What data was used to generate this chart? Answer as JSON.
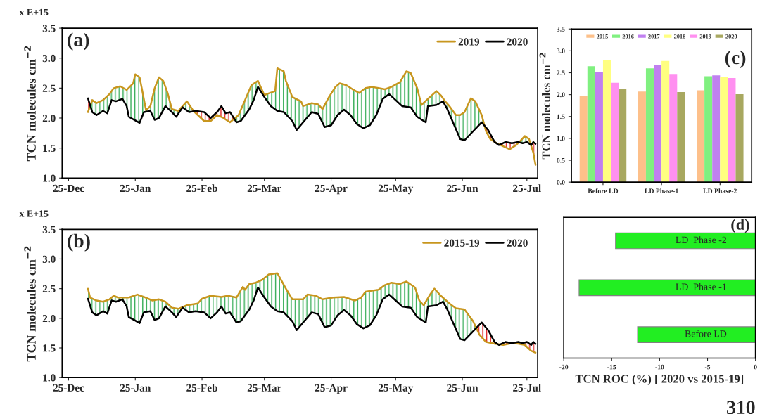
{
  "chart_data": [
    {
      "type": "line",
      "ylabel": "TCN molecules cm$^{−2}$",
      "annotations": [
        "(a)",
        "x E+15"
      ],
      "legend": "top right",
      "grid": false,
      "xlim": [
        "2019-12-22",
        "2020-07-30"
      ],
      "xticks": [
        {
          "value": "2019-12-25",
          "label": "25-Dec"
        },
        {
          "value": "2020-01-25",
          "label": "25-Jan"
        },
        {
          "value": "2020-02-25",
          "label": "25-Feb"
        },
        {
          "value": "2020-03-25",
          "label": "25-Mar"
        },
        {
          "value": "2020-04-25",
          "label": "25-Apr"
        },
        {
          "value": "2020-05-25",
          "label": "25-May"
        },
        {
          "value": "2020-06-25",
          "label": "25-Jun"
        },
        {
          "value": "2020-07-25",
          "label": "25-Jul"
        }
      ],
      "ylim": [
        1.0,
        3.5
      ],
      "yticks": [
        {
          "value": 1.0,
          "label": "1.0"
        },
        {
          "value": 1.5,
          "label": "1.5"
        },
        {
          "value": 2.0,
          "label": "2.0"
        },
        {
          "value": 2.5,
          "label": "2.5"
        },
        {
          "value": 3.0,
          "label": "3.0"
        },
        {
          "value": 3.5,
          "label": "3.5"
        }
      ],
      "series": [
        {
          "name": "2019",
          "color": "#c8961e",
          "x": [
            "2020-01-03",
            "2020-01-05",
            "2020-01-07",
            "2020-01-10",
            "2020-01-13",
            "2020-01-15",
            "2020-01-18",
            "2020-01-21",
            "2020-01-24",
            "2020-01-25",
            "2020-01-27",
            "2020-01-28",
            "2020-01-30",
            "2020-02-01",
            "2020-02-03",
            "2020-02-05",
            "2020-02-07",
            "2020-02-09",
            "2020-02-11",
            "2020-02-14",
            "2020-02-18",
            "2020-02-21",
            "2020-02-26",
            "2020-02-29",
            "2020-03-03",
            "2020-03-06",
            "2020-03-09",
            "2020-03-13",
            "2020-03-16",
            "2020-03-19",
            "2020-03-22",
            "2020-03-25",
            "2020-03-26",
            "2020-03-30",
            "2020-03-31",
            "2020-04-03",
            "2020-04-04",
            "2020-04-07",
            "2020-04-11",
            "2020-04-12",
            "2020-04-16",
            "2020-04-19",
            "2020-04-21",
            "2020-04-24",
            "2020-04-27",
            "2020-04-29",
            "2020-05-02",
            "2020-05-05",
            "2020-05-08",
            "2020-05-11",
            "2020-05-14",
            "2020-05-17",
            "2020-05-20",
            "2020-05-23",
            "2020-05-27",
            "2020-05-30",
            "2020-06-01",
            "2020-06-04",
            "2020-06-06",
            "2020-06-09",
            "2020-06-13",
            "2020-06-15",
            "2020-06-17",
            "2020-06-19",
            "2020-06-22",
            "2020-06-24",
            "2020-06-26",
            "2020-06-29",
            "2020-07-01",
            "2020-07-04",
            "2020-07-06",
            "2020-07-08",
            "2020-07-11",
            "2020-07-14",
            "2020-07-17",
            "2020-07-20",
            "2020-07-22",
            "2020-07-24",
            "2020-07-26",
            "2020-07-28",
            "2020-07-29"
          ],
          "values": [
            2.1,
            2.3,
            2.25,
            2.3,
            2.4,
            2.5,
            2.53,
            2.47,
            2.58,
            2.73,
            2.68,
            2.5,
            2.13,
            2.2,
            2.5,
            2.68,
            2.62,
            2.42,
            2.15,
            2.12,
            2.28,
            2.12,
            1.95,
            1.95,
            2.05,
            2.0,
            1.93,
            2.05,
            2.3,
            2.55,
            2.62,
            2.38,
            2.4,
            2.45,
            2.83,
            2.78,
            2.62,
            2.35,
            2.28,
            2.2,
            2.25,
            2.23,
            2.15,
            2.35,
            2.52,
            2.58,
            2.55,
            2.48,
            2.42,
            2.5,
            2.52,
            2.5,
            2.48,
            2.52,
            2.6,
            2.78,
            2.75,
            2.5,
            2.22,
            2.32,
            2.45,
            2.38,
            2.28,
            2.2,
            2.05,
            2.05,
            2.1,
            2.33,
            2.28,
            2.05,
            1.78,
            1.65,
            1.58,
            1.53,
            1.48,
            1.55,
            1.62,
            1.7,
            1.65,
            1.42,
            1.22
          ]
        },
        {
          "name": "2020",
          "color": "#000000",
          "x": [
            "2020-01-03",
            "2020-01-05",
            "2020-01-07",
            "2020-01-10",
            "2020-01-12",
            "2020-01-14",
            "2020-01-16",
            "2020-01-19",
            "2020-01-21",
            "2020-01-22",
            "2020-01-25",
            "2020-01-27",
            "2020-01-29",
            "2020-02-01",
            "2020-02-03",
            "2020-02-05",
            "2020-02-08",
            "2020-02-11",
            "2020-02-13",
            "2020-02-16",
            "2020-02-19",
            "2020-02-22",
            "2020-02-26",
            "2020-02-29",
            "2020-03-03",
            "2020-03-05",
            "2020-03-07",
            "2020-03-09",
            "2020-03-12",
            "2020-03-14",
            "2020-03-18",
            "2020-03-20",
            "2020-03-22",
            "2020-03-25",
            "2020-03-28",
            "2020-03-31",
            "2020-04-03",
            "2020-04-07",
            "2020-04-09",
            "2020-04-12",
            "2020-04-16",
            "2020-04-19",
            "2020-04-22",
            "2020-04-25",
            "2020-04-28",
            "2020-05-01",
            "2020-05-04",
            "2020-05-07",
            "2020-05-10",
            "2020-05-13",
            "2020-05-16",
            "2020-05-19",
            "2020-05-22",
            "2020-05-25",
            "2020-05-28",
            "2020-06-01",
            "2020-06-04",
            "2020-06-08",
            "2020-06-09",
            "2020-06-13",
            "2020-06-16",
            "2020-06-18",
            "2020-06-21",
            "2020-06-24",
            "2020-06-26",
            "2020-06-30",
            "2020-07-04",
            "2020-07-07",
            "2020-07-10",
            "2020-07-12",
            "2020-07-15",
            "2020-07-18",
            "2020-07-21",
            "2020-07-23",
            "2020-07-25",
            "2020-07-27",
            "2020-07-28",
            "2020-07-29"
          ],
          "values": [
            2.33,
            2.1,
            2.05,
            2.12,
            2.08,
            2.3,
            2.28,
            2.32,
            2.2,
            2.02,
            1.96,
            1.92,
            2.1,
            2.12,
            1.97,
            2.0,
            2.2,
            2.1,
            2.02,
            2.18,
            2.1,
            2.12,
            2.1,
            2.0,
            2.1,
            2.2,
            2.08,
            2.1,
            1.93,
            1.95,
            2.15,
            2.3,
            2.52,
            2.35,
            2.2,
            2.12,
            2.1,
            1.95,
            1.8,
            1.93,
            2.1,
            2.07,
            1.85,
            1.88,
            2.05,
            2.14,
            2.05,
            1.9,
            1.83,
            1.88,
            2.05,
            2.32,
            2.4,
            2.3,
            2.2,
            2.18,
            2.02,
            1.93,
            2.2,
            2.22,
            2.28,
            2.15,
            1.9,
            1.65,
            1.63,
            1.78,
            1.93,
            1.8,
            1.6,
            1.55,
            1.6,
            1.58,
            1.6,
            1.58,
            1.6,
            1.55,
            1.6,
            1.57
          ]
        }
      ]
    },
    {
      "type": "line",
      "ylabel": "TCN molecules cm$^{−2}$",
      "annotations": [
        "(b)",
        "x E+15"
      ],
      "legend": "top right",
      "grid": false,
      "xlim": [
        "2019-12-22",
        "2020-07-30"
      ],
      "xticks": [
        {
          "value": "2019-12-25",
          "label": "25-Dec"
        },
        {
          "value": "2020-01-25",
          "label": "25-Jan"
        },
        {
          "value": "2020-02-25",
          "label": "25-Feb"
        },
        {
          "value": "2020-03-25",
          "label": "25-Mar"
        },
        {
          "value": "2020-04-25",
          "label": "25-Apr"
        },
        {
          "value": "2020-05-25",
          "label": "25-May"
        },
        {
          "value": "2020-06-25",
          "label": "25-Jun"
        },
        {
          "value": "2020-07-25",
          "label": "25-Jul"
        }
      ],
      "ylim": [
        1.0,
        3.5
      ],
      "yticks": [
        {
          "value": 1.0,
          "label": "1.0"
        },
        {
          "value": 1.5,
          "label": "1.5"
        },
        {
          "value": 2.0,
          "label": "2.0"
        },
        {
          "value": 2.5,
          "label": "2.5"
        },
        {
          "value": 3.0,
          "label": "3.0"
        },
        {
          "value": 3.5,
          "label": "3.5"
        }
      ],
      "series": [
        {
          "name": "2015-19",
          "color": "#c8961e",
          "x": [
            "2020-01-03",
            "2020-01-04",
            "2020-01-07",
            "2020-01-10",
            "2020-01-13",
            "2020-01-15",
            "2020-01-17",
            "2020-01-22",
            "2020-01-26",
            "2020-01-29",
            "2020-02-02",
            "2020-02-05",
            "2020-02-08",
            "2020-02-11",
            "2020-02-14",
            "2020-02-18",
            "2020-02-23",
            "2020-02-25",
            "2020-02-29",
            "2020-03-05",
            "2020-03-08",
            "2020-03-12",
            "2020-03-15",
            "2020-03-16",
            "2020-03-18",
            "2020-03-21",
            "2020-03-24",
            "2020-03-27",
            "2020-03-31",
            "2020-04-04",
            "2020-04-07",
            "2020-04-12",
            "2020-04-14",
            "2020-04-18",
            "2020-04-21",
            "2020-04-26",
            "2020-05-01",
            "2020-05-06",
            "2020-05-09",
            "2020-05-11",
            "2020-05-17",
            "2020-05-20",
            "2020-05-23",
            "2020-05-27",
            "2020-05-30",
            "2020-06-03",
            "2020-06-05",
            "2020-06-07",
            "2020-06-10",
            "2020-06-12",
            "2020-06-15",
            "2020-06-19",
            "2020-06-22",
            "2020-06-26",
            "2020-06-30",
            "2020-07-03",
            "2020-07-06",
            "2020-07-10",
            "2020-07-14",
            "2020-07-18",
            "2020-07-21",
            "2020-07-24",
            "2020-07-27",
            "2020-07-29"
          ],
          "values": [
            2.5,
            2.35,
            2.3,
            2.28,
            2.32,
            2.38,
            2.35,
            2.35,
            2.4,
            2.36,
            2.3,
            2.32,
            2.28,
            2.18,
            2.16,
            2.22,
            2.25,
            2.33,
            2.38,
            2.36,
            2.38,
            2.35,
            2.53,
            2.48,
            2.58,
            2.6,
            2.65,
            2.74,
            2.76,
            2.5,
            2.32,
            2.32,
            2.4,
            2.38,
            2.32,
            2.35,
            2.36,
            2.3,
            2.35,
            2.45,
            2.48,
            2.56,
            2.6,
            2.58,
            2.62,
            2.52,
            2.3,
            2.22,
            2.4,
            2.5,
            2.38,
            2.25,
            2.17,
            2.15,
            1.95,
            1.72,
            1.6,
            1.57,
            1.55,
            1.58,
            1.57,
            1.55,
            1.45,
            1.42
          ]
        },
        {
          "name": "2020",
          "color": "#000000",
          "x": [
            "2020-01-03",
            "2020-01-05",
            "2020-01-07",
            "2020-01-10",
            "2020-01-12",
            "2020-01-14",
            "2020-01-16",
            "2020-01-19",
            "2020-01-21",
            "2020-01-22",
            "2020-01-25",
            "2020-01-27",
            "2020-01-29",
            "2020-02-01",
            "2020-02-03",
            "2020-02-05",
            "2020-02-08",
            "2020-02-11",
            "2020-02-13",
            "2020-02-16",
            "2020-02-19",
            "2020-02-22",
            "2020-02-26",
            "2020-02-29",
            "2020-03-03",
            "2020-03-05",
            "2020-03-07",
            "2020-03-09",
            "2020-03-12",
            "2020-03-14",
            "2020-03-18",
            "2020-03-20",
            "2020-03-22",
            "2020-03-25",
            "2020-03-28",
            "2020-03-31",
            "2020-04-03",
            "2020-04-07",
            "2020-04-09",
            "2020-04-12",
            "2020-04-16",
            "2020-04-19",
            "2020-04-22",
            "2020-04-25",
            "2020-04-28",
            "2020-05-01",
            "2020-05-04",
            "2020-05-07",
            "2020-05-10",
            "2020-05-13",
            "2020-05-16",
            "2020-05-19",
            "2020-05-22",
            "2020-05-25",
            "2020-05-28",
            "2020-06-01",
            "2020-06-04",
            "2020-06-08",
            "2020-06-09",
            "2020-06-13",
            "2020-06-16",
            "2020-06-18",
            "2020-06-21",
            "2020-06-24",
            "2020-06-26",
            "2020-06-30",
            "2020-07-04",
            "2020-07-07",
            "2020-07-10",
            "2020-07-12",
            "2020-07-15",
            "2020-07-18",
            "2020-07-21",
            "2020-07-23",
            "2020-07-25",
            "2020-07-27",
            "2020-07-28",
            "2020-07-29"
          ],
          "values": [
            2.33,
            2.1,
            2.05,
            2.12,
            2.08,
            2.3,
            2.28,
            2.32,
            2.2,
            2.02,
            1.96,
            1.92,
            2.1,
            2.12,
            1.97,
            2.0,
            2.2,
            2.1,
            2.02,
            2.18,
            2.1,
            2.12,
            2.1,
            2.0,
            2.1,
            2.2,
            2.08,
            2.1,
            1.93,
            1.95,
            2.15,
            2.3,
            2.52,
            2.35,
            2.2,
            2.12,
            2.1,
            1.95,
            1.8,
            1.93,
            2.1,
            2.07,
            1.85,
            1.88,
            2.05,
            2.14,
            2.05,
            1.9,
            1.83,
            1.88,
            2.05,
            2.32,
            2.4,
            2.3,
            2.2,
            2.18,
            2.02,
            1.93,
            2.2,
            2.22,
            2.28,
            2.15,
            1.9,
            1.65,
            1.63,
            1.78,
            1.93,
            1.8,
            1.6,
            1.55,
            1.6,
            1.58,
            1.6,
            1.58,
            1.6,
            1.55,
            1.6,
            1.57
          ]
        }
      ]
    },
    {
      "type": "bar",
      "ylabel": "TCN molecules cm$^{−2}$",
      "annotations": [
        "(c)"
      ],
      "legend": "top",
      "grid": false,
      "categories": [
        "Before LD",
        "LD Phase-1",
        "LD Phase-2"
      ],
      "ylim": [
        0,
        3.5
      ],
      "yticks": [
        {
          "value": 0,
          "label": "0.0"
        },
        {
          "value": 0.5,
          "label": "0.5"
        },
        {
          "value": 1.0,
          "label": "1.0"
        },
        {
          "value": 1.5,
          "label": "1.5"
        },
        {
          "value": 2.0,
          "label": "2.0"
        },
        {
          "value": 2.5,
          "label": "2.5"
        },
        {
          "value": 3.0,
          "label": "3.0"
        },
        {
          "value": 3.5,
          "label": "3.5"
        }
      ],
      "series": [
        {
          "name": "2015",
          "color": "#fdc08a",
          "values": [
            1.97,
            2.07,
            2.1
          ]
        },
        {
          "name": "2016",
          "color": "#80f080",
          "values": [
            2.65,
            2.6,
            2.42
          ]
        },
        {
          "name": "2017",
          "color": "#c080f0",
          "values": [
            2.52,
            2.68,
            2.44
          ]
        },
        {
          "name": "2018",
          "color": "#ffff80",
          "values": [
            2.78,
            2.77,
            2.41
          ]
        },
        {
          "name": "2019",
          "color": "#ff90f0",
          "values": [
            2.27,
            2.47,
            2.38
          ]
        },
        {
          "name": "2020",
          "color": "#a8a860",
          "values": [
            2.14,
            2.06,
            2.01
          ]
        }
      ]
    },
    {
      "type": "bar",
      "orientation": "horizontal",
      "xlabel": "TCN ROC (%) [ 2020 vs 2015-19]",
      "annotations": [
        "(d)",
        "310"
      ],
      "tick_labels": "x",
      "grid": false,
      "categories": [
        "LD  Phase -2",
        "LD  Phase -1",
        "Before LD"
      ],
      "xlim": [
        -20,
        0
      ],
      "xticks": [
        -20,
        -15,
        -10,
        -5,
        0
      ],
      "series": [
        {
          "color": "#22ee22",
          "values": [
            -14.6,
            -18.4,
            -12.3
          ]
        }
      ]
    }
  ]
}
